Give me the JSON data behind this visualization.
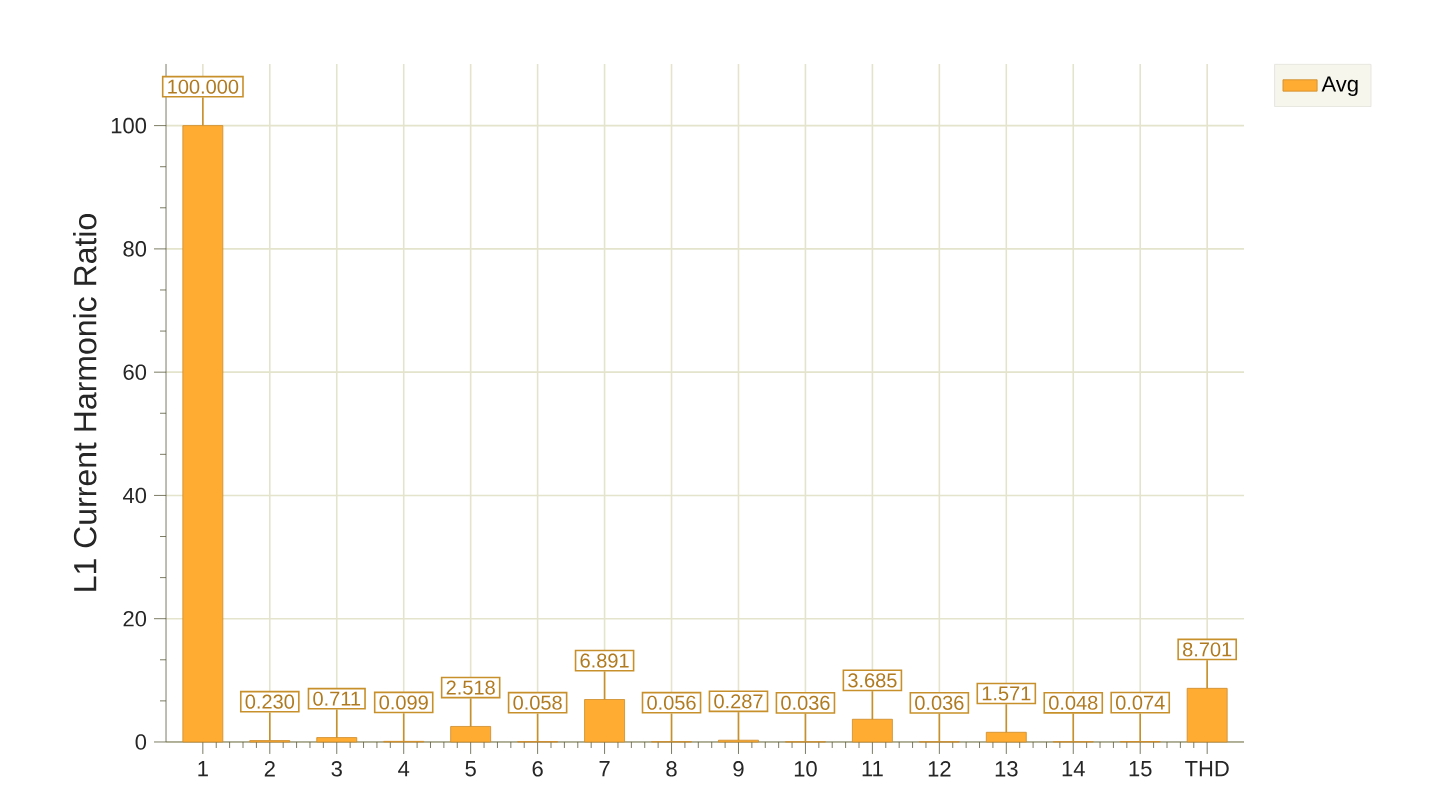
{
  "chart_data": {
    "type": "bar",
    "ylabel": "L1 Current Harmonic Ratio",
    "categories": [
      "1",
      "2",
      "3",
      "4",
      "5",
      "6",
      "7",
      "8",
      "9",
      "10",
      "11",
      "12",
      "13",
      "14",
      "15",
      "THD"
    ],
    "series": [
      {
        "name": "Avg",
        "color": "#ffac33",
        "values": [
          100.0,
          0.23,
          0.711,
          0.099,
          2.518,
          0.058,
          6.891,
          0.056,
          0.287,
          0.036,
          3.685,
          0.036,
          1.571,
          0.048,
          0.074,
          8.701
        ],
        "value_labels": [
          "100.000",
          "0.230",
          "0.711",
          "0.099",
          "2.518",
          "0.058",
          "6.891",
          "0.056",
          "0.287",
          "0.036",
          "3.685",
          "0.036",
          "1.571",
          "0.048",
          "0.074",
          "8.701"
        ]
      }
    ],
    "ylim": [
      0,
      110
    ],
    "yticks": [
      0,
      20,
      40,
      60,
      80,
      100
    ],
    "grid": true,
    "legend": "top right"
  }
}
